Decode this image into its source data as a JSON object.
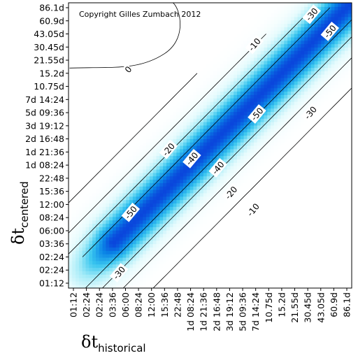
{
  "chart_data": {
    "type": "heatmap",
    "copyright": "Copyright Gilles Zumbach 2012",
    "x_axis": {
      "symbol": "δt",
      "subscript": "historical",
      "ticks": [
        "01:12",
        "02:24",
        "02:24",
        "03:36",
        "06:00",
        "08:24",
        "12:00",
        "15:36",
        "22:48",
        "1d 08:24",
        "1d 21:36",
        "2d 16:48",
        "3d 19:12",
        "5d 09:36",
        "7d 14:24",
        "10.75d",
        "15.2d",
        "21.55d",
        "30.45d",
        "43.05d",
        "60.9d",
        "86.1d"
      ]
    },
    "y_axis": {
      "symbol": "δt",
      "subscript": "centered",
      "ticks": [
        "01:12",
        "02:24",
        "02:24",
        "03:36",
        "06:00",
        "08:24",
        "12:00",
        "15:36",
        "22:48",
        "1d 08:24",
        "1d 21:36",
        "2d 16:48",
        "3d 19:12",
        "5d 09:36",
        "7d 14:24",
        "10.75d",
        "15.2d",
        "21.55d",
        "30.45d",
        "43.05d",
        "60.9d",
        "86.1d"
      ]
    },
    "contour_levels": [
      0,
      -10,
      -20,
      -30,
      -40,
      -50
    ],
    "contour_labels": [
      {
        "text": "-30",
        "x": 18.3,
        "y": 20.5
      },
      {
        "text": "-50",
        "x": 19.7,
        "y": 19.2
      },
      {
        "text": "-10",
        "x": 13.9,
        "y": 18.2
      },
      {
        "text": "0",
        "x": 4.2,
        "y": 16.3
      },
      {
        "text": "-50",
        "x": 14.1,
        "y": 12.9
      },
      {
        "text": "-30",
        "x": 18.2,
        "y": 13.0
      },
      {
        "text": "-20",
        "x": 7.3,
        "y": 10.2
      },
      {
        "text": "-40",
        "x": 9.1,
        "y": 9.5
      },
      {
        "text": "-40",
        "x": 11.1,
        "y": 8.8
      },
      {
        "text": "-20",
        "x": 12.1,
        "y": 6.9
      },
      {
        "text": "-10",
        "x": 13.8,
        "y": 5.6
      },
      {
        "text": "-50",
        "x": 4.4,
        "y": 5.4
      },
      {
        "text": "-30",
        "x": 3.5,
        "y": 0.8
      }
    ],
    "colorscale": [
      "#ffffff",
      "#e6fbfd",
      "#a6ecf8",
      "#39c6ef",
      "#0a84e6",
      "#0a2fd8"
    ]
  }
}
